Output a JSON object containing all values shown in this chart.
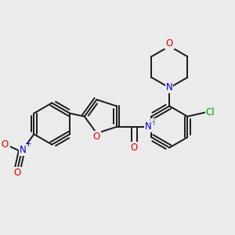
{
  "background_color": "#ebebeb",
  "bond_color": "#1a1a1a",
  "bond_width": 1.4,
  "atom_colors": {
    "O": "#e00000",
    "N": "#0000cc",
    "Cl": "#009900",
    "H": "#4a8a8a",
    "C": "#1a1a1a"
  },
  "font_size": 8.5,
  "title": ""
}
